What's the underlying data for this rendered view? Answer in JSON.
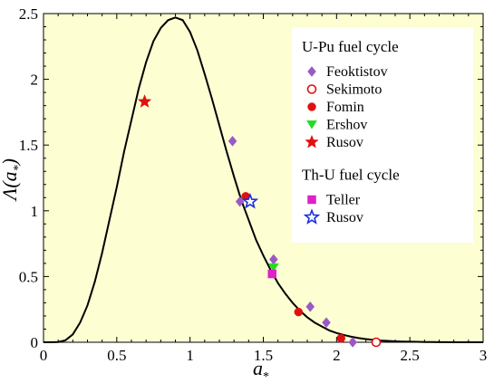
{
  "chart_data": {
    "type": "scatter",
    "xlabel_base": "a",
    "xlabel_sub": "*",
    "ylabel_prefix": "Λ(",
    "ylabel_var": "a",
    "ylabel_sub": "*",
    "ylabel_suffix": ")",
    "xlim": [
      0,
      3
    ],
    "ylim": [
      0,
      2.5
    ],
    "x_ticks": [
      "0",
      "0.5",
      "1",
      "1.5",
      "2",
      "2.5",
      "3"
    ],
    "y_ticks": [
      "0",
      "0.5",
      "1",
      "1.5",
      "2",
      "2.5"
    ],
    "x_tick_values": [
      0,
      0.5,
      1,
      1.5,
      2,
      2.5,
      3
    ],
    "y_tick_values": [
      0,
      0.5,
      1,
      1.5,
      2,
      2.5
    ],
    "background_color": "#fdfed2",
    "curve": {
      "x": [
        0.0,
        0.05,
        0.1,
        0.15,
        0.2,
        0.25,
        0.3,
        0.35,
        0.4,
        0.45,
        0.5,
        0.55,
        0.6,
        0.65,
        0.7,
        0.75,
        0.8,
        0.85,
        0.9,
        0.95,
        1.0,
        1.05,
        1.1,
        1.15,
        1.2,
        1.25,
        1.3,
        1.35,
        1.4,
        1.45,
        1.5,
        1.55,
        1.6,
        1.65,
        1.7,
        1.75,
        1.8,
        1.85,
        1.9,
        1.95,
        2.0,
        2.05,
        2.1,
        2.15,
        2.2,
        2.25,
        2.3,
        2.35,
        2.4,
        2.45,
        2.5,
        2.55,
        2.6,
        2.65,
        2.7,
        2.75,
        2.8,
        2.85,
        2.9,
        2.95,
        3.0
      ],
      "y": [
        0.0,
        0.0,
        0.002,
        0.015,
        0.06,
        0.15,
        0.28,
        0.46,
        0.68,
        0.93,
        1.18,
        1.45,
        1.69,
        1.93,
        2.13,
        2.29,
        2.39,
        2.45,
        2.47,
        2.45,
        2.36,
        2.22,
        2.04,
        1.85,
        1.65,
        1.45,
        1.26,
        1.08,
        0.93,
        0.78,
        0.66,
        0.55,
        0.45,
        0.37,
        0.3,
        0.24,
        0.19,
        0.15,
        0.12,
        0.09,
        0.07,
        0.055,
        0.042,
        0.032,
        0.024,
        0.018,
        0.013,
        0.01,
        0.007,
        0.005,
        0.004,
        0.003,
        0.002,
        0.002,
        0.001,
        0.001,
        0.0,
        0.0,
        0.0,
        0.0,
        0.0
      ]
    },
    "series": [
      {
        "name": "Feoktistov",
        "marker": "diamond",
        "color": "#9b59c6",
        "filled": true,
        "x": [
          1.29,
          1.34,
          1.57,
          1.82,
          1.93,
          2.11
        ],
        "y": [
          1.53,
          1.07,
          0.63,
          0.27,
          0.15,
          0.0
        ]
      },
      {
        "name": "Sekimoto",
        "marker": "circle",
        "color": "#e01010",
        "filled": false,
        "x": [
          2.27
        ],
        "y": [
          0.0
        ]
      },
      {
        "name": "Fomin",
        "marker": "circle",
        "color": "#e01010",
        "filled": true,
        "x": [
          1.38,
          1.74,
          2.03
        ],
        "y": [
          1.11,
          0.23,
          0.03
        ]
      },
      {
        "name": "Ershov",
        "marker": "triangle-down",
        "color": "#22dd22",
        "filled": true,
        "x": [
          1.57
        ],
        "y": [
          0.57
        ]
      },
      {
        "name": "Rusov",
        "marker": "star",
        "color": "#e01010",
        "filled": true,
        "x": [
          0.69
        ],
        "y": [
          1.83
        ]
      },
      {
        "name": "Teller",
        "marker": "square",
        "color": "#e020c8",
        "filled": true,
        "x": [
          1.56
        ],
        "y": [
          0.52
        ]
      },
      {
        "name": "Rusov",
        "marker": "star",
        "color": "#1a2fe0",
        "filled": false,
        "x": [
          1.41
        ],
        "y": [
          1.07
        ]
      }
    ],
    "legend": {
      "placement": "top-right",
      "groups": [
        {
          "title": "U-Pu fuel cycle",
          "series_indices": [
            0,
            1,
            2,
            3,
            4
          ]
        },
        {
          "title": "Th-U fuel cycle",
          "series_indices": [
            5,
            6
          ]
        }
      ]
    }
  }
}
